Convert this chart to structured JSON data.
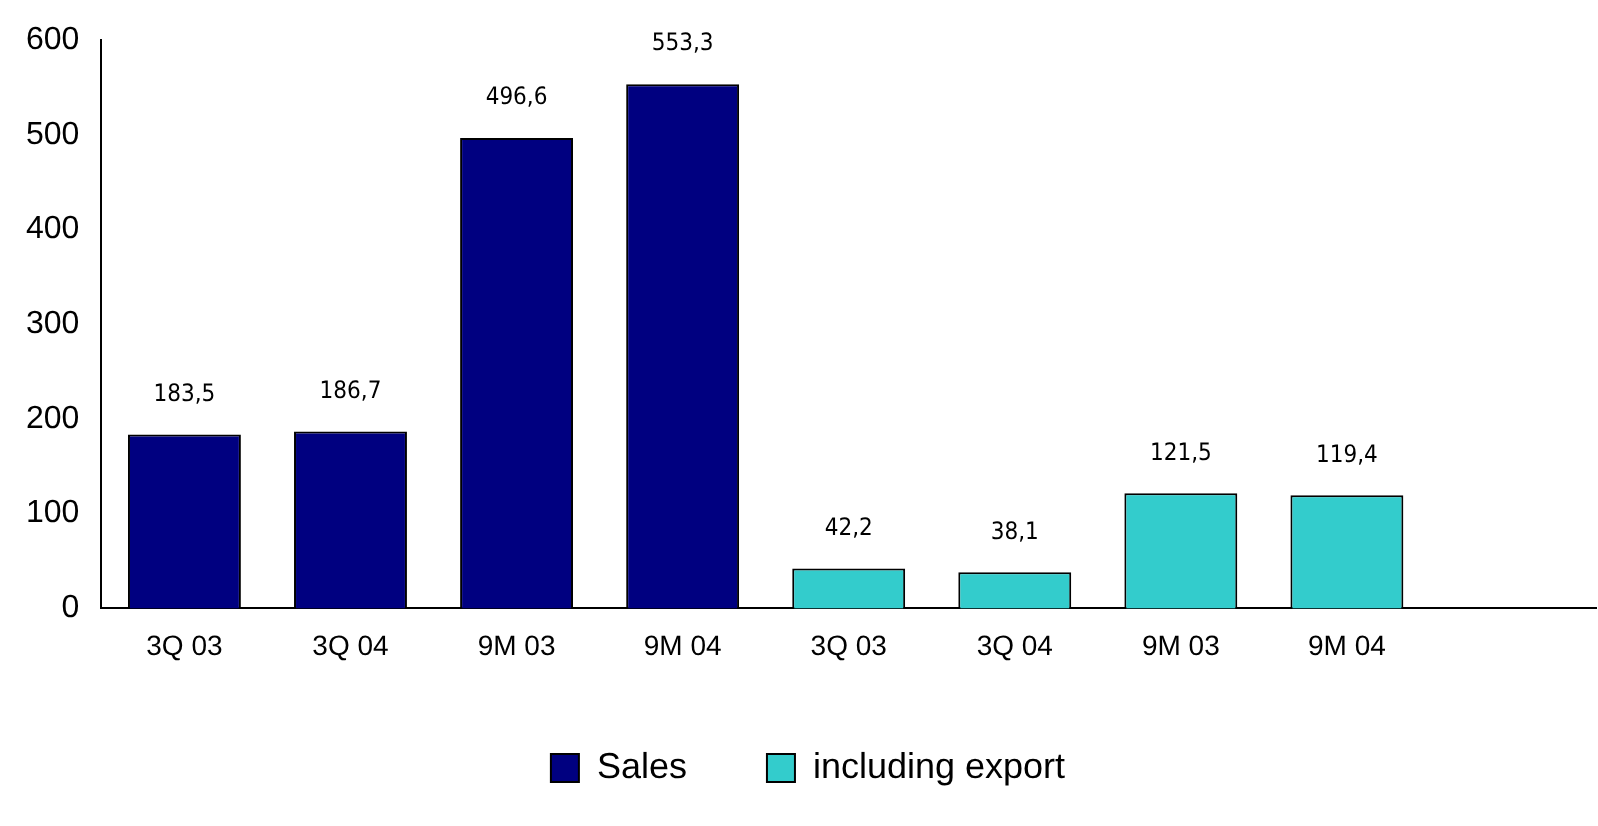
{
  "chart_data": {
    "type": "bar",
    "categories": [
      "3Q 03",
      "3Q 04",
      "9M 03",
      "9M 04",
      "3Q 03",
      "3Q 04",
      "9M 03",
      "9M 04",
      null
    ],
    "series": [
      {
        "name": "Sales",
        "color": "#000080",
        "values": [
          183.5,
          186.7,
          496.6,
          553.3,
          null,
          null,
          null,
          null,
          null
        ],
        "value_labels": [
          "183,5",
          "186,7",
          "496,6",
          "553,3",
          null,
          null,
          null,
          null,
          null
        ]
      },
      {
        "name": "including export",
        "color": "#33cccc",
        "values": [
          null,
          null,
          null,
          null,
          42.2,
          38.1,
          121.5,
          119.4,
          null
        ],
        "value_labels": [
          null,
          null,
          null,
          null,
          "42,2",
          "38,1",
          "121,5",
          "119,4",
          null
        ]
      }
    ],
    "stacked": true,
    "ylim": [
      0,
      600
    ],
    "yticks": [
      0,
      100,
      200,
      300,
      400,
      500,
      600
    ],
    "grid": false,
    "legend": "bottom"
  }
}
